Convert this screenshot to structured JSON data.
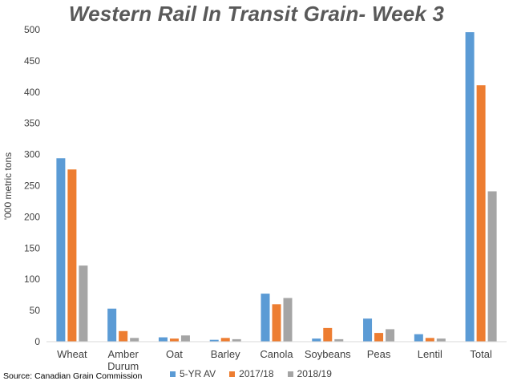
{
  "chart_data": {
    "type": "bar",
    "title": "Western Rail In Transit Grain- Week 3",
    "ylabel": "'000 metric tons",
    "xlabel": "",
    "ylim": [
      0,
      500
    ],
    "yticks": [
      0,
      50,
      100,
      150,
      200,
      250,
      300,
      350,
      400,
      450,
      500
    ],
    "grid": false,
    "legend_position": "bottom",
    "categories": [
      [
        "Wheat"
      ],
      [
        "Amber",
        "Durum"
      ],
      [
        "Oat"
      ],
      [
        "Barley"
      ],
      [
        "Canola"
      ],
      [
        "Soybeans"
      ],
      [
        "Peas"
      ],
      [
        "Lentil"
      ],
      [
        "Total"
      ]
    ],
    "series": [
      {
        "name": "5-YR AV",
        "color": "#5B9BD5",
        "values": [
          294,
          53,
          7,
          3,
          77,
          5,
          37,
          12,
          496
        ]
      },
      {
        "name": "2017/18",
        "color": "#ED7D31",
        "values": [
          276,
          17,
          5,
          6,
          60,
          22,
          14,
          6,
          411
        ]
      },
      {
        "name": "2018/19",
        "color": "#A5A5A5",
        "values": [
          122,
          6,
          10,
          4,
          70,
          4,
          20,
          5,
          241
        ]
      }
    ]
  },
  "source": "Source: Canadian Grain Commission"
}
